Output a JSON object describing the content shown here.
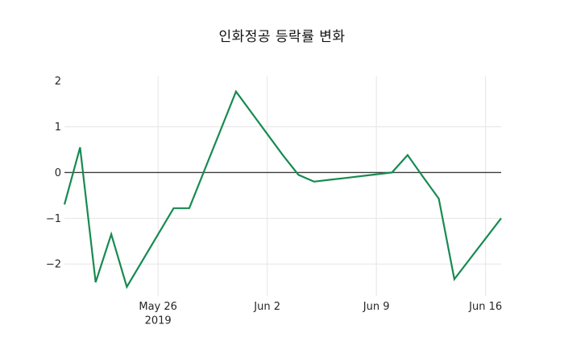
{
  "window": {
    "background": "#ffffff"
  },
  "chart_data": {
    "type": "line",
    "title": "인화정공 등락률 변화",
    "xlabel": "",
    "ylabel": "",
    "legend": "none",
    "grid": "on",
    "x_range": [
      "2019-05-20",
      "2019-06-17"
    ],
    "y_range": [
      -2.7,
      2.1
    ],
    "series": [
      {
        "name": "인화정공 등락률",
        "color": "#178a52",
        "x": [
          "2019-05-20",
          "2019-05-21",
          "2019-05-22",
          "2019-05-23",
          "2019-05-24",
          "2019-05-27",
          "2019-05-28",
          "2019-05-29",
          "2019-05-30",
          "2019-05-31",
          "2019-06-03",
          "2019-06-04",
          "2019-06-05",
          "2019-06-06",
          "2019-06-07",
          "2019-06-10",
          "2019-06-11",
          "2019-06-12",
          "2019-06-13",
          "2019-06-14",
          "2019-06-17"
        ],
        "values": [
          -0.7,
          0.55,
          -2.4,
          -1.35,
          -2.5,
          -0.78,
          -0.78,
          0.07,
          0.92,
          1.77,
          0.38,
          -0.05,
          -0.2,
          -0.16,
          -0.12,
          0.0,
          0.38,
          -0.1,
          -0.57,
          -2.33,
          -1.0
        ]
      }
    ],
    "x_ticks": [
      {
        "date": "2019-05-26",
        "lines": [
          "May 26",
          "2019"
        ]
      },
      {
        "date": "2019-06-02",
        "lines": [
          "Jun 2"
        ]
      },
      {
        "date": "2019-06-09",
        "lines": [
          "Jun 9"
        ]
      },
      {
        "date": "2019-06-16",
        "lines": [
          "Jun 16"
        ]
      }
    ],
    "y_ticks": [
      {
        "value": 2,
        "label": "2",
        "gridline": false,
        "zeroline": false
      },
      {
        "value": 1,
        "label": "1",
        "gridline": true,
        "zeroline": false
      },
      {
        "value": 0,
        "label": "0",
        "gridline": false,
        "zeroline": true
      },
      {
        "value": -1,
        "label": "−1",
        "gridline": true,
        "zeroline": false
      },
      {
        "value": -2,
        "label": "−2",
        "gridline": true,
        "zeroline": false
      }
    ],
    "colors": {
      "line": "#178a52",
      "grid": "#e5e5e5",
      "zeroline": "#3c3c3c",
      "tick_text": "#262626",
      "title_text": "#111111",
      "background": "#ffffff"
    }
  }
}
